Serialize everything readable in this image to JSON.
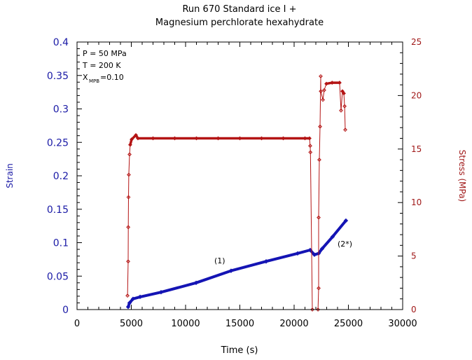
{
  "chart_data": {
    "type": "line",
    "title": [
      "Run 670 Standard ice I +",
      "Magnesium perchlorate hexahydrate"
    ],
    "xlabel": "Time (s)",
    "ylabel": "Strain",
    "ylabel_right": "Stress (MPa)",
    "xlim": [
      0,
      30000
    ],
    "ylim": [
      0,
      0.4
    ],
    "ylim_right": [
      0,
      25
    ],
    "x_ticks": [
      "0",
      "5000",
      "10000",
      "15000",
      "20000",
      "25000",
      "30000"
    ],
    "y_ticks": [
      "0",
      "0.05",
      "0.1",
      "0.15",
      "0.2",
      "0.25",
      "0.3",
      "0.35",
      "0.4"
    ],
    "y_ticks_right": [
      "0",
      "5",
      "10",
      "15",
      "20",
      "25"
    ],
    "grid": false,
    "annotations": {
      "pressure": "P = 50 MPa",
      "temperature": "T = 200 K",
      "fraction_prefix": "X",
      "fraction_sub": "MPB",
      "fraction_value": "=0.10",
      "segment1": "(1)",
      "segment2": "(2*)"
    },
    "series": [
      {
        "name": "Strain",
        "axis": "left",
        "color": "#1414b4",
        "x": [
          4710,
          4840,
          5160,
          5810,
          7740,
          10970,
          14190,
          17420,
          20320,
          21480,
          21870,
          22260,
          22580,
          23550,
          24770
        ],
        "values": [
          0.004,
          0.01,
          0.016,
          0.019,
          0.026,
          0.04,
          0.058,
          0.072,
          0.084,
          0.089,
          0.082,
          0.084,
          0.091,
          0.109,
          0.133
        ]
      },
      {
        "name": "Stress (MPa)",
        "axis": "right",
        "color": "#b41414",
        "x": [
          4650,
          4710,
          4720,
          4740,
          4770,
          4840,
          4900,
          5030,
          5420,
          5610,
          7000,
          9000,
          11000,
          13000,
          15000,
          17000,
          19000,
          21000,
          21420,
          21480,
          21500,
          21680,
          22200,
          22260,
          22260,
          22320,
          22390,
          22450,
          22460,
          22650,
          22770,
          22970,
          23500,
          24190,
          24320,
          24450,
          24580,
          24650,
          24710
        ],
        "values": [
          1.3,
          4.5,
          7.7,
          10.5,
          12.6,
          14.5,
          15.4,
          15.9,
          16.3,
          16.0,
          16.0,
          16.0,
          16.0,
          16.0,
          16.0,
          16.0,
          16.0,
          16.0,
          16.0,
          15.3,
          14.7,
          0.0,
          0.0,
          2.0,
          8.6,
          14.0,
          17.1,
          21.8,
          20.4,
          19.6,
          20.5,
          21.1,
          21.2,
          21.2,
          18.6,
          20.4,
          20.2,
          19.0,
          16.8
        ]
      }
    ],
    "colors": {
      "strain": "#1414b4",
      "stress": "#b41414",
      "left_axis_text": "#1a1aa6",
      "right_axis_text": "#a01818"
    }
  }
}
